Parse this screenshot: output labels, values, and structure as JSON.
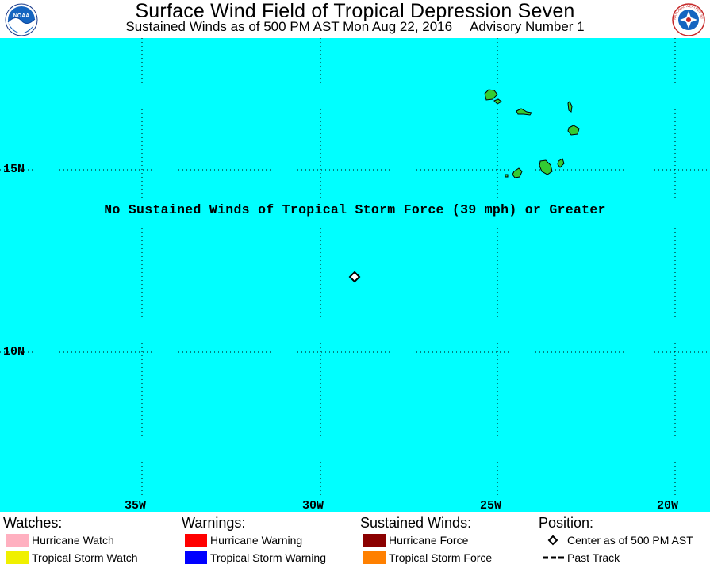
{
  "header": {
    "title": "Surface Wind Field of Tropical Depression Seven",
    "subtitle_time": "Sustained Winds as of 500 PM AST Mon Aug 22, 2016",
    "subtitle_advisory": "Advisory Number 1",
    "left_logo_text": "NOAA",
    "right_logo_text": "NATIONAL WEATHER SERVICE"
  },
  "map": {
    "background_color": "#00ffff",
    "land_color": "#33cc33",
    "latitude_labels": [
      "15N",
      "10N"
    ],
    "longitude_labels": [
      "35W",
      "30W",
      "25W",
      "20W"
    ],
    "note": "No Sustained Winds of Tropical Storm Force (39 mph) or Greater",
    "storm_center_icon": "diamond-icon"
  },
  "legend": {
    "watches": {
      "heading": "Watches:",
      "items": [
        {
          "label": "Hurricane Watch",
          "color": "#ffb0c0"
        },
        {
          "label": "Tropical Storm Watch",
          "color": "#f0f000"
        }
      ]
    },
    "warnings": {
      "heading": "Warnings:",
      "items": [
        {
          "label": "Hurricane Warning",
          "color": "#ff0000"
        },
        {
          "label": "Tropical Storm Warning",
          "color": "#0000ff"
        }
      ]
    },
    "winds": {
      "heading": "Sustained Winds:",
      "items": [
        {
          "label": "Hurricane Force",
          "color": "#8b0000"
        },
        {
          "label": "Tropical Storm Force",
          "color": "#ff8000"
        }
      ]
    },
    "position": {
      "heading": "Position:",
      "items": [
        {
          "label": "Center as of 500 PM AST",
          "icon": "diamond-icon"
        },
        {
          "label": "Past Track",
          "icon": "dashed-line-icon"
        }
      ]
    }
  }
}
